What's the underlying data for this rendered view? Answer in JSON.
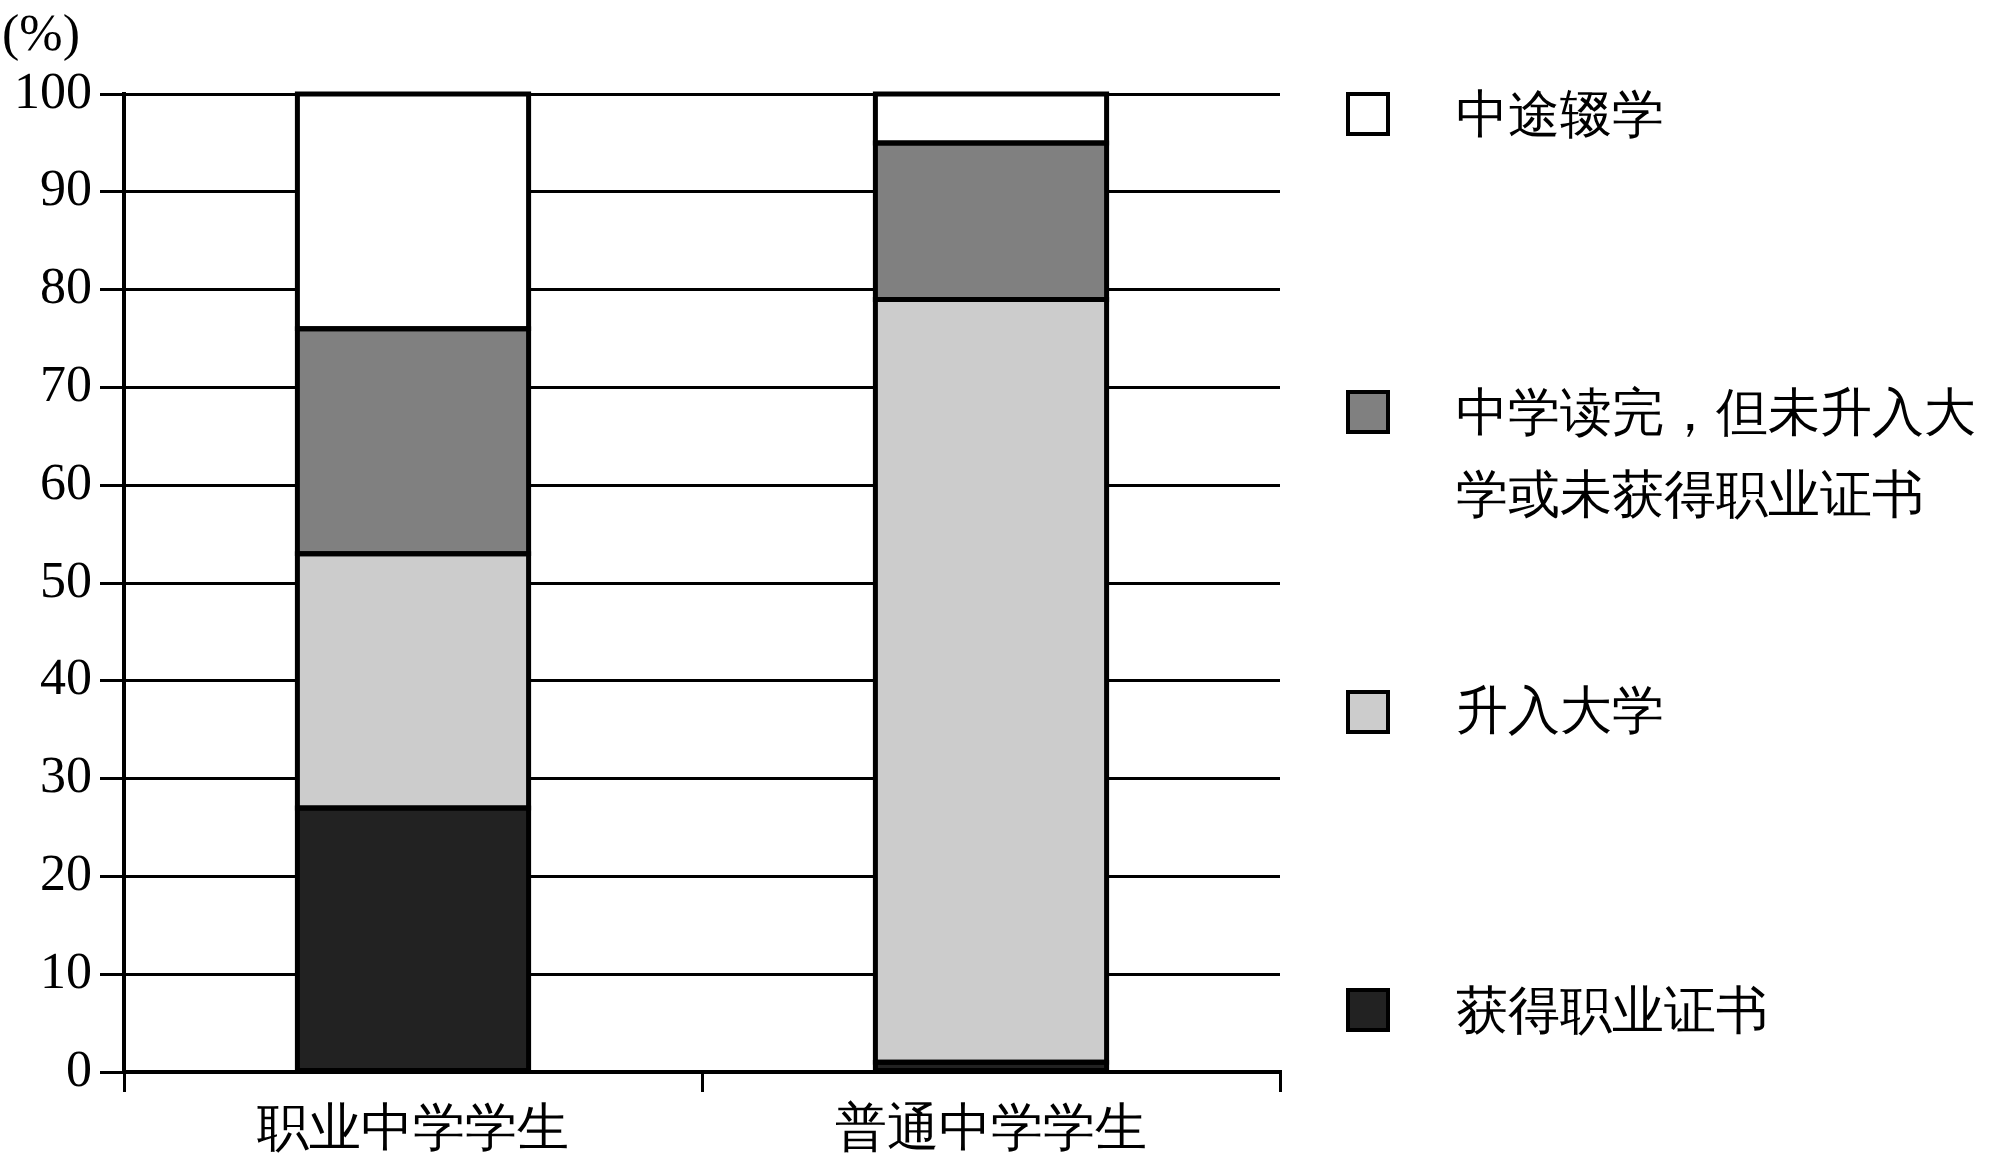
{
  "chart_data": {
    "type": "bar",
    "stacked": true,
    "ylabel": "(%)",
    "categories": [
      "职业中学学生",
      "普通中学学生"
    ],
    "series": [
      {
        "name": "获得职业证书",
        "color": "#222222",
        "values": [
          27,
          1
        ]
      },
      {
        "name": "升入大学",
        "color": "#cccccc",
        "values": [
          26,
          78
        ]
      },
      {
        "name": "中学读完，但未升入大学或未获得职业证书",
        "color": "#808080",
        "values": [
          23,
          16
        ]
      },
      {
        "name": "中途辍学",
        "color": "#ffffff",
        "values": [
          24,
          5
        ]
      }
    ],
    "ylim": [
      0,
      100
    ],
    "yticks": [
      0,
      10,
      20,
      30,
      40,
      50,
      60,
      70,
      80,
      90,
      100
    ],
    "grid": "y",
    "legend": "right"
  }
}
